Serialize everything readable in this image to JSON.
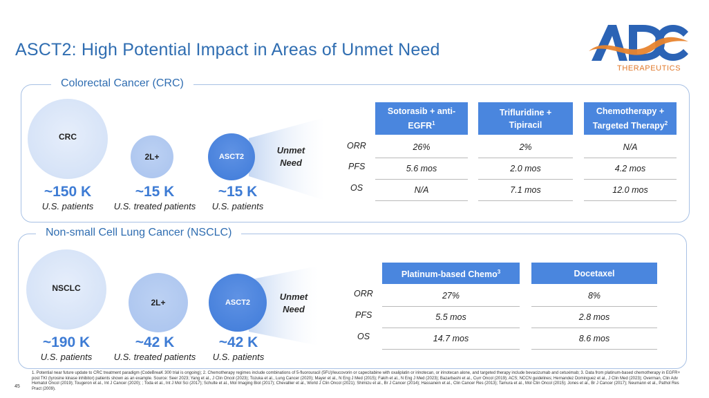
{
  "title": "ASCT2: High Potential Impact in Areas of Unmet Need",
  "logo": {
    "name": "ADC",
    "subtitle": "THERAPEUTICS",
    "colors": {
      "blue": "#2b63b5",
      "orange": "#e8842e"
    }
  },
  "crc": {
    "label": "Colorectal Cancer (CRC)",
    "circles": [
      {
        "label": "CRC",
        "value": "~150 K",
        "caption": "U.S. patients"
      },
      {
        "label": "2L+",
        "value": "~15 K",
        "caption": "U.S. treated patients"
      },
      {
        "label": "ASCT2",
        "value": "~15 K",
        "caption": "U.S. patients"
      }
    ],
    "unmet": {
      "line1": "Unmet",
      "line2": "Need"
    },
    "table": {
      "headers": [
        {
          "text": "Sotorasib + anti-EGFR",
          "sup": "1"
        },
        {
          "text": "Trifluridine + Tipiracil",
          "sup": ""
        },
        {
          "text": "Chemotherapy + Targeted Therapy",
          "sup": "2"
        }
      ],
      "rows": [
        {
          "label": "ORR",
          "values": [
            "26%",
            "2%",
            "N/A"
          ]
        },
        {
          "label": "PFS",
          "values": [
            "5.6 mos",
            "2.0 mos",
            "4.2 mos"
          ]
        },
        {
          "label": "OS",
          "values": [
            "N/A",
            "7.1 mos",
            "12.0 mos"
          ]
        }
      ]
    }
  },
  "nsclc": {
    "label": "Non-small Cell Lung Cancer (NSCLC)",
    "circles": [
      {
        "label": "NSCLC",
        "value": "~190 K",
        "caption": "U.S. patients"
      },
      {
        "label": "2L+",
        "value": "~42 K",
        "caption": "U.S. treated patients"
      },
      {
        "label": "ASCT2",
        "value": "~42 K",
        "caption": "U.S. patients"
      }
    ],
    "unmet": {
      "line1": "Unmet",
      "line2": "Need"
    },
    "table": {
      "headers": [
        {
          "text": "Platinum-based Chemo",
          "sup": "3"
        },
        {
          "text": "Docetaxel",
          "sup": ""
        }
      ],
      "rows": [
        {
          "label": "ORR",
          "values": [
            "27%",
            "8%"
          ]
        },
        {
          "label": "PFS",
          "values": [
            "5.5 mos",
            "2.8 mos"
          ]
        },
        {
          "label": "OS",
          "values": [
            "14.7 mos",
            "8.6 mos"
          ]
        }
      ]
    }
  },
  "footnote": "1. Potential near future update to CRC treatment paradigm (CodeBreaK 300 trial is ongoing); 2. Chemotherapy regimes include combinations of 5-fluorouracil (5FU)/leucovorin or capecitabine with oxaliplatin or irinotecan, or irinotecan alone, and targeted therapy include bevacizumab and cetuximab; 3. Data from platinum-based chemotherapy in EGFR+ post TKI (tyrosine kinase inhibitor) patients shown as an example. Source: Seer 2023; Yang et al., J Clin Oncol (2023); Tozuka et al., Lung Cancer (2020); Mayer et al., N Eng J Med (2015); Fakih et al., N Eng J Med (2023); Bazarbashi et al., Curr Oncol (2019); ACS; NCCN guidelines; Hernandez Dominguez et al., J Clin Med (2023); Overman, Clin Adv Hematol Oncol (2019); Tougeron et al., Int J Cancer (2020); ; Toda et al., Int J Mol Sci (2017); Schulte et al., Mol Imaging Biol (2017); Chevallier et al., World J Clin Oncol (2021); Shimizu et al., Br J Cancer (2014); Hassanein et al., Clin Cancer Res (2013); Tamura et al., Mol Clin Oncol (2015); Jones et al., Br J Cancer (2017); Neumann et al., Pathol Res Pract (2009).",
  "page_number": "45"
}
